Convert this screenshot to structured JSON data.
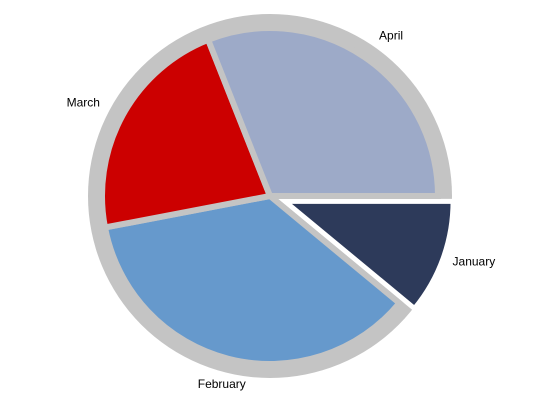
{
  "chart_data": {
    "type": "pie",
    "categories": [
      "January",
      "February",
      "March",
      "April"
    ],
    "values": [
      11,
      36,
      22,
      31
    ],
    "colors": [
      "#2d3a5a",
      "#6699cc",
      "#cc0000",
      "#9daac8"
    ],
    "exploded": [
      "January"
    ],
    "ring_color": "#c4c4c4",
    "background": "#ffffff",
    "legend": "none"
  }
}
